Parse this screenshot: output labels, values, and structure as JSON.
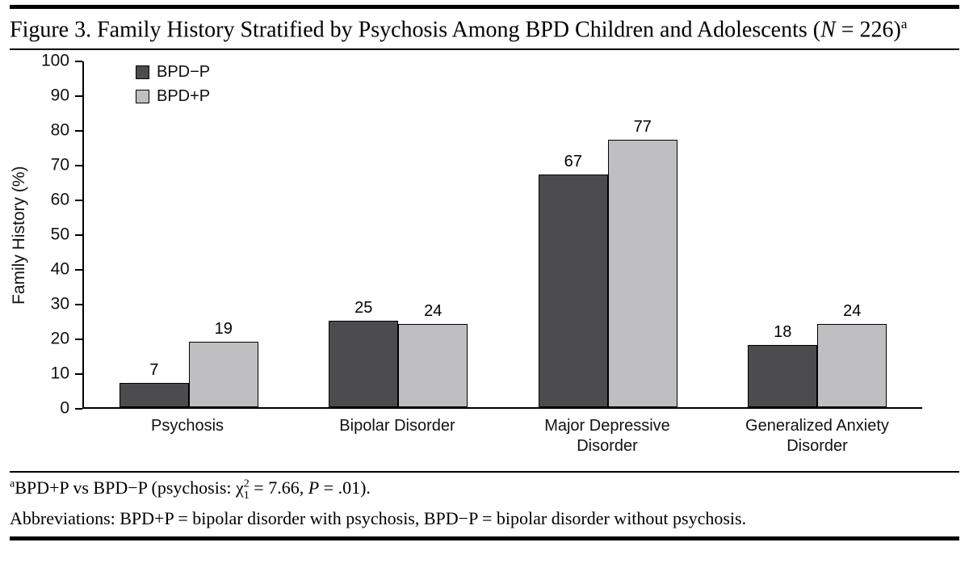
{
  "figure": {
    "title": {
      "text": "Figure 3. Family History Stratified by Psychosis Among BPD Children and Adolescents (",
      "n": "N",
      "tail": " = 226)",
      "sup": "a"
    },
    "footnote": {
      "marker": "a",
      "pre": "BPD+P vs BPD−P (psychosis: ",
      "chi": "χ",
      "chi_sup": "2",
      "chi_sub": "1",
      "mid": " = 7.66, ",
      "p": "P",
      "end": " = .01)."
    },
    "abbreviations": "Abbreviations: BPD+P = bipolar disorder with psychosis, BPD−P = bipolar disorder without psychosis."
  },
  "chart_data": {
    "type": "bar",
    "title": "Figure 3. Family History Stratified by Psychosis Among BPD Children and Adolescents (N = 226)",
    "ylabel": "Family History (%)",
    "xlabel": "",
    "ylim": [
      0,
      100
    ],
    "yticks": [
      0,
      10,
      20,
      30,
      40,
      50,
      60,
      70,
      80,
      90,
      100
    ],
    "grid": false,
    "legend_position": "upper-left-inside",
    "categories": [
      "Psychosis",
      "Bipolar Disorder",
      "Major Depressive Disorder",
      "Generalized Anxiety Disorder"
    ],
    "series": [
      {
        "name": "BPD−P",
        "color": "#4c4c4e",
        "values": [
          7,
          25,
          67,
          18
        ]
      },
      {
        "name": "BPD+P",
        "color": "#bfbfc1",
        "values": [
          19,
          24,
          77,
          24
        ]
      }
    ],
    "bar_outline": "#000000"
  }
}
